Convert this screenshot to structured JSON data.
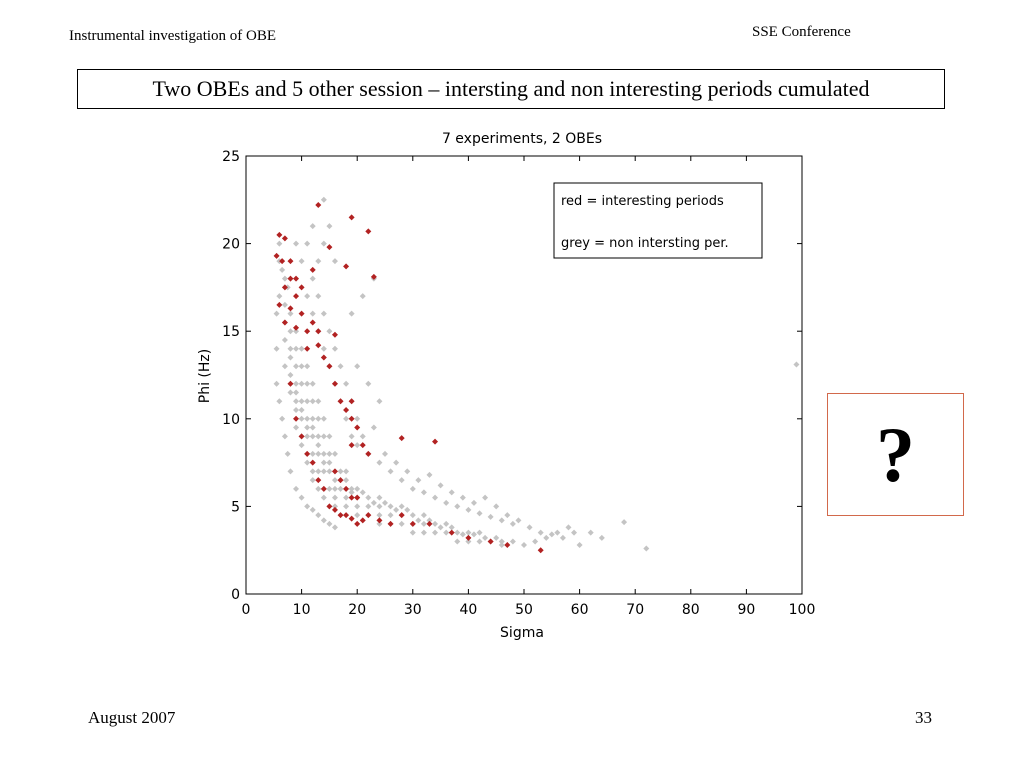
{
  "header": {
    "left_text": "Instrumental investigation of OBE",
    "right_text": "SSE Conference"
  },
  "slide_title": "Two OBEs and 5 other session – intersting and non interesting periods cumulated",
  "question_box": {
    "symbol": "?",
    "border_color": "#d2694b"
  },
  "footer": {
    "date": "August 2007",
    "page_number": "33"
  },
  "chart_data": {
    "type": "scatter",
    "title": "7 experiments, 2 OBEs",
    "xlabel": "Sigma",
    "ylabel": "Phi (Hz)",
    "xlim": [
      0,
      100
    ],
    "ylim": [
      0,
      25
    ],
    "xticks": [
      "0",
      "10",
      "20",
      "30",
      "40",
      "50",
      "60",
      "70",
      "80",
      "90",
      "100"
    ],
    "yticks": [
      "0",
      "5",
      "10",
      "15",
      "20",
      "25"
    ],
    "grid": false,
    "legend": {
      "placement": "top-right",
      "entries": [
        "red = interesting periods",
        "grey = non intersting per."
      ]
    },
    "series": [
      {
        "color": "#c4c4c4",
        "points": [
          [
            6,
            20
          ],
          [
            6,
            19
          ],
          [
            6.5,
            18.5
          ],
          [
            7,
            18
          ],
          [
            7.5,
            17.5
          ],
          [
            6,
            17
          ],
          [
            7,
            16.5
          ],
          [
            8,
            16
          ],
          [
            7,
            15.5
          ],
          [
            8,
            15
          ],
          [
            9,
            15
          ],
          [
            7,
            14.5
          ],
          [
            8,
            14
          ],
          [
            9,
            14
          ],
          [
            10,
            14
          ],
          [
            8,
            13.5
          ],
          [
            9,
            13
          ],
          [
            10,
            13
          ],
          [
            11,
            13
          ],
          [
            8,
            12.5
          ],
          [
            9,
            12
          ],
          [
            10,
            12
          ],
          [
            11,
            12
          ],
          [
            12,
            12
          ],
          [
            8,
            11.5
          ],
          [
            9,
            11
          ],
          [
            10,
            11
          ],
          [
            11,
            11
          ],
          [
            12,
            11
          ],
          [
            13,
            11
          ],
          [
            9,
            10.5
          ],
          [
            10,
            10
          ],
          [
            11,
            10
          ],
          [
            12,
            10
          ],
          [
            13,
            10
          ],
          [
            14,
            10
          ],
          [
            9,
            9.5
          ],
          [
            10,
            9
          ],
          [
            11,
            9
          ],
          [
            12,
            9
          ],
          [
            13,
            9
          ],
          [
            14,
            9
          ],
          [
            15,
            9
          ],
          [
            10,
            8.5
          ],
          [
            11,
            8
          ],
          [
            12,
            8
          ],
          [
            13,
            8
          ],
          [
            14,
            8
          ],
          [
            15,
            8
          ],
          [
            16,
            8
          ],
          [
            11,
            7.5
          ],
          [
            12,
            7
          ],
          [
            13,
            7
          ],
          [
            14,
            7
          ],
          [
            15,
            7
          ],
          [
            16,
            7
          ],
          [
            17,
            7
          ],
          [
            18,
            7
          ],
          [
            12,
            6.5
          ],
          [
            13,
            6
          ],
          [
            14,
            6
          ],
          [
            15,
            6
          ],
          [
            16,
            6
          ],
          [
            17,
            6
          ],
          [
            18,
            6
          ],
          [
            19,
            6
          ],
          [
            20,
            6
          ],
          [
            14,
            5.5
          ],
          [
            16,
            5.5
          ],
          [
            18,
            5.5
          ],
          [
            20,
            5.5
          ],
          [
            22,
            5.5
          ],
          [
            24,
            5.5
          ],
          [
            16,
            5
          ],
          [
            18,
            5
          ],
          [
            20,
            5
          ],
          [
            22,
            5
          ],
          [
            24,
            5
          ],
          [
            26,
            5
          ],
          [
            28,
            5
          ],
          [
            20,
            4.5
          ],
          [
            22,
            4.5
          ],
          [
            24,
            4.5
          ],
          [
            26,
            4.5
          ],
          [
            28,
            4.5
          ],
          [
            30,
            4.5
          ],
          [
            32,
            4.5
          ],
          [
            24,
            4
          ],
          [
            26,
            4
          ],
          [
            28,
            4
          ],
          [
            30,
            4
          ],
          [
            32,
            4
          ],
          [
            34,
            4
          ],
          [
            36,
            4
          ],
          [
            30,
            3.5
          ],
          [
            32,
            3.5
          ],
          [
            34,
            3.5
          ],
          [
            36,
            3.5
          ],
          [
            38,
            3.5
          ],
          [
            40,
            3.5
          ],
          [
            42,
            3.5
          ],
          [
            38,
            3
          ],
          [
            40,
            3
          ],
          [
            42,
            3
          ],
          [
            44,
            3
          ],
          [
            46,
            3
          ],
          [
            48,
            3
          ],
          [
            46,
            2.8
          ],
          [
            50,
            2.8
          ],
          [
            52,
            3
          ],
          [
            54,
            3.2
          ],
          [
            56,
            3.5
          ],
          [
            58,
            3.8
          ],
          [
            7,
            13
          ],
          [
            8,
            12
          ],
          [
            9,
            11.5
          ],
          [
            10,
            10.5
          ],
          [
            11,
            9.5
          ],
          [
            12,
            9.5
          ],
          [
            13,
            8.5
          ],
          [
            14,
            7.5
          ],
          [
            15,
            7.5
          ],
          [
            16,
            6.5
          ],
          [
            17,
            6.5
          ],
          [
            18,
            6.5
          ],
          [
            19,
            5.8
          ],
          [
            21,
            5.8
          ],
          [
            23,
            5.2
          ],
          [
            25,
            5.2
          ],
          [
            27,
            4.8
          ],
          [
            29,
            4.8
          ],
          [
            31,
            4.2
          ],
          [
            33,
            4.2
          ],
          [
            35,
            3.8
          ],
          [
            37,
            3.8
          ],
          [
            39,
            3.4
          ],
          [
            41,
            3.4
          ],
          [
            43,
            3.2
          ],
          [
            45,
            3.2
          ],
          [
            11,
            17
          ],
          [
            12,
            16
          ],
          [
            13,
            15
          ],
          [
            14,
            14
          ],
          [
            15,
            13
          ],
          [
            16,
            12
          ],
          [
            17,
            11
          ],
          [
            18,
            10
          ],
          [
            19,
            9
          ],
          [
            20,
            8.5
          ],
          [
            22,
            8
          ],
          [
            24,
            7.5
          ],
          [
            26,
            7
          ],
          [
            28,
            6.5
          ],
          [
            30,
            6
          ],
          [
            32,
            5.8
          ],
          [
            34,
            5.5
          ],
          [
            36,
            5.2
          ],
          [
            38,
            5
          ],
          [
            40,
            4.8
          ],
          [
            42,
            4.6
          ],
          [
            44,
            4.4
          ],
          [
            46,
            4.2
          ],
          [
            48,
            4
          ],
          [
            12,
            18
          ],
          [
            13,
            17
          ],
          [
            14,
            16
          ],
          [
            15,
            15
          ],
          [
            16,
            14
          ],
          [
            17,
            13
          ],
          [
            18,
            12
          ],
          [
            19,
            11
          ],
          [
            20,
            10
          ],
          [
            13,
            19
          ],
          [
            14,
            20
          ],
          [
            15,
            21
          ],
          [
            12,
            21
          ],
          [
            16,
            19
          ],
          [
            14,
            22.5
          ],
          [
            9,
            20
          ],
          [
            10,
            19
          ],
          [
            11,
            20
          ],
          [
            19,
            16
          ],
          [
            21,
            17
          ],
          [
            23,
            18
          ],
          [
            20,
            13
          ],
          [
            22,
            12
          ],
          [
            24,
            11
          ],
          [
            21,
            9
          ],
          [
            23,
            9.5
          ],
          [
            25,
            8
          ],
          [
            27,
            7.5
          ],
          [
            29,
            7
          ],
          [
            31,
            6.5
          ],
          [
            33,
            6.8
          ],
          [
            35,
            6.2
          ],
          [
            37,
            5.8
          ],
          [
            39,
            5.5
          ],
          [
            41,
            5.2
          ],
          [
            43,
            5.5
          ],
          [
            45,
            5
          ],
          [
            47,
            4.5
          ],
          [
            49,
            4.2
          ],
          [
            51,
            3.8
          ],
          [
            53,
            3.5
          ],
          [
            55,
            3.4
          ],
          [
            57,
            3.2
          ],
          [
            59,
            3.5
          ],
          [
            68,
            4.1
          ],
          [
            72,
            2.6
          ],
          [
            99,
            13.1
          ],
          [
            62,
            3.5
          ],
          [
            64,
            3.2
          ],
          [
            60,
            2.8
          ],
          [
            5.5,
            16
          ],
          [
            5.5,
            14
          ],
          [
            5.5,
            12
          ],
          [
            6,
            11
          ],
          [
            6.5,
            10
          ],
          [
            7,
            9
          ],
          [
            7.5,
            8
          ],
          [
            8,
            7
          ],
          [
            9,
            6
          ],
          [
            10,
            5.5
          ],
          [
            11,
            5
          ],
          [
            12,
            4.8
          ],
          [
            13,
            4.5
          ],
          [
            14,
            4.2
          ],
          [
            15,
            4
          ],
          [
            16,
            3.8
          ]
        ]
      },
      {
        "color": "#b22222",
        "points": [
          [
            6,
            20.5
          ],
          [
            7,
            20.3
          ],
          [
            5.5,
            19.3
          ],
          [
            6.5,
            19
          ],
          [
            8,
            18
          ],
          [
            7,
            17.5
          ],
          [
            9,
            17
          ],
          [
            6,
            16.5
          ],
          [
            8,
            16.3
          ],
          [
            10,
            16
          ],
          [
            7,
            15.5
          ],
          [
            9,
            15.2
          ],
          [
            11,
            15
          ],
          [
            12,
            15.5
          ],
          [
            13,
            15
          ],
          [
            16,
            14.8
          ],
          [
            11,
            14
          ],
          [
            13,
            14.2
          ],
          [
            14,
            13.5
          ],
          [
            15,
            13
          ],
          [
            16,
            12
          ],
          [
            17,
            11
          ],
          [
            18,
            10.5
          ],
          [
            19,
            10
          ],
          [
            19,
            11
          ],
          [
            20,
            9.5
          ],
          [
            19,
            8.5
          ],
          [
            21,
            8.5
          ],
          [
            22,
            8
          ],
          [
            28,
            8.9
          ],
          [
            34,
            8.7
          ],
          [
            16,
            7
          ],
          [
            17,
            6.5
          ],
          [
            18,
            6
          ],
          [
            19,
            5.5
          ],
          [
            20,
            5.5
          ],
          [
            15,
            5
          ],
          [
            16,
            4.8
          ],
          [
            17,
            4.5
          ],
          [
            18,
            4.5
          ],
          [
            19,
            4.3
          ],
          [
            20,
            4
          ],
          [
            21,
            4.2
          ],
          [
            22,
            4.5
          ],
          [
            24,
            4.2
          ],
          [
            26,
            4
          ],
          [
            28,
            4.5
          ],
          [
            30,
            4
          ],
          [
            33,
            4
          ],
          [
            37,
            3.5
          ],
          [
            40,
            3.2
          ],
          [
            44,
            3
          ],
          [
            47,
            2.8
          ],
          [
            53,
            2.5
          ],
          [
            13,
            22.2
          ],
          [
            19,
            21.5
          ],
          [
            22,
            20.7
          ],
          [
            15,
            19.8
          ],
          [
            18,
            18.7
          ],
          [
            23,
            18.1
          ],
          [
            12,
            18.5
          ],
          [
            8,
            12
          ],
          [
            9,
            10
          ],
          [
            10,
            9
          ],
          [
            11,
            8
          ],
          [
            12,
            7.5
          ],
          [
            13,
            6.5
          ],
          [
            14,
            6
          ],
          [
            8,
            19
          ],
          [
            9,
            18
          ],
          [
            10,
            17.5
          ]
        ]
      }
    ]
  }
}
